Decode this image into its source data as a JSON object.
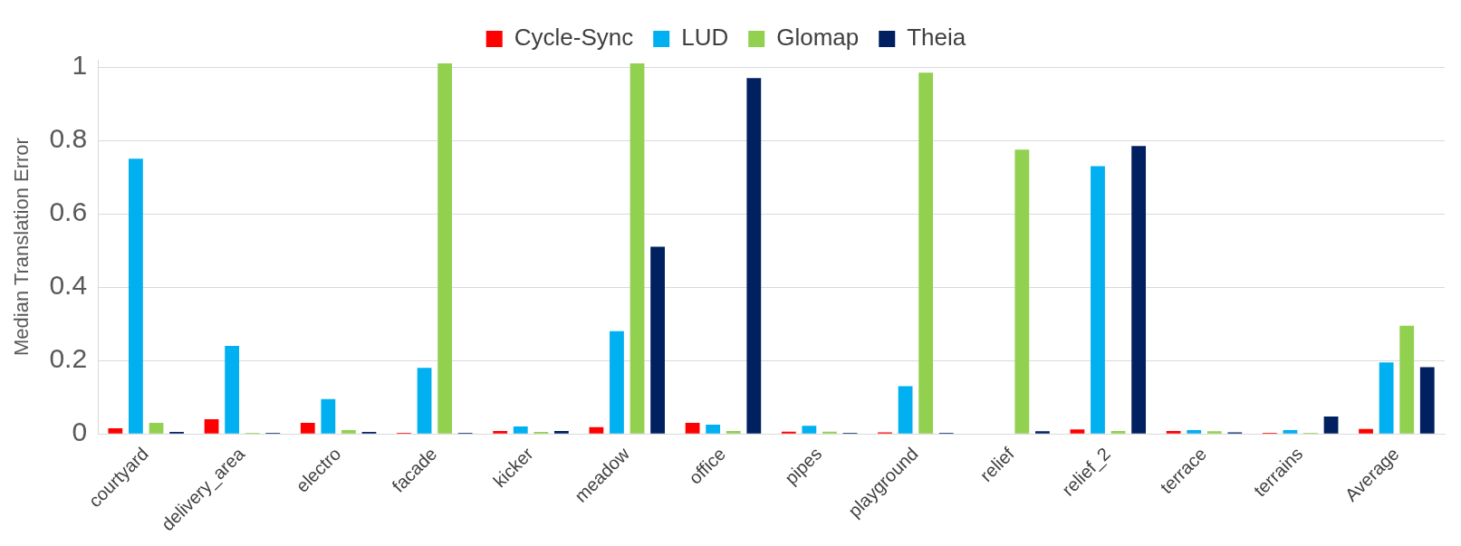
{
  "chart_data": {
    "type": "bar",
    "ylabel": "Median Translation Error",
    "categories": [
      "courtyard",
      "delivery_area",
      "electro",
      "facade",
      "kicker",
      "meadow",
      "office",
      "pipes",
      "playground",
      "relief",
      "relief_2",
      "terrace",
      "terrains",
      "Average"
    ],
    "series": [
      {
        "name": "Cycle-Sync",
        "color": "#ff0000",
        "values": [
          0.015,
          0.04,
          0.03,
          0.003,
          0.008,
          0.018,
          0.03,
          0.006,
          0.004,
          null,
          0.012,
          0.008,
          0.003,
          0.013
        ]
      },
      {
        "name": "LUD",
        "color": "#00b0f0",
        "values": [
          0.75,
          0.24,
          0.095,
          0.18,
          0.02,
          0.28,
          0.025,
          0.022,
          0.13,
          null,
          0.73,
          0.01,
          0.01,
          0.195
        ]
      },
      {
        "name": "Glomap",
        "color": "#92d050",
        "values": [
          0.03,
          0.003,
          0.01,
          1.01,
          0.005,
          1.01,
          0.008,
          0.006,
          0.985,
          0.775,
          0.008,
          0.007,
          0.003,
          0.295
        ]
      },
      {
        "name": "Theia",
        "color": "#002060",
        "values": [
          0.005,
          0.003,
          0.005,
          0.003,
          0.008,
          0.51,
          0.97,
          0.003,
          0.003,
          0.007,
          0.785,
          0.004,
          0.047,
          0.182
        ]
      }
    ],
    "ylim": [
      0,
      1.02
    ],
    "yticks": [
      0,
      0.2,
      0.4,
      0.6,
      0.8,
      1
    ],
    "grid": "y",
    "legend": "top"
  }
}
